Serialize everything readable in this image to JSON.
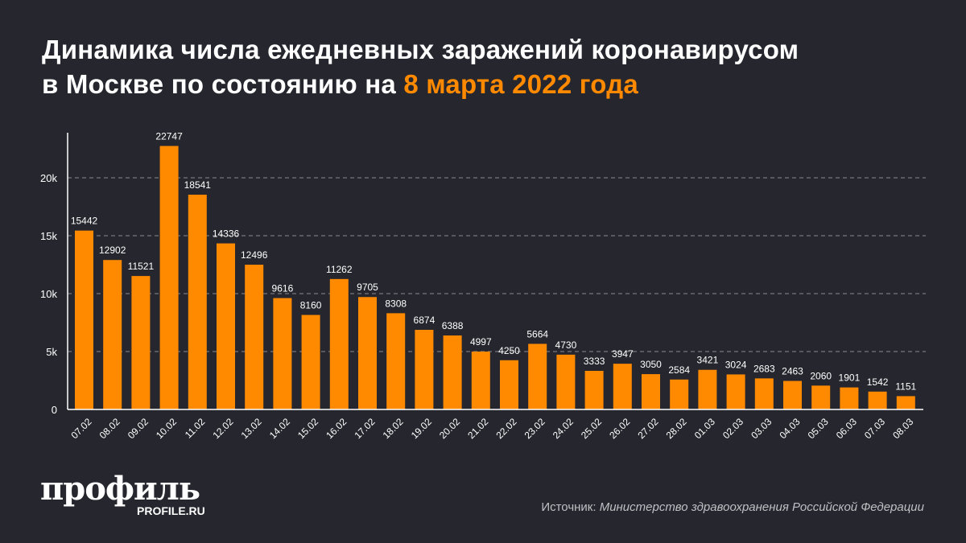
{
  "title": {
    "line1": "Динамика числа ежедневных заражений коронавирусом",
    "line2_prefix": "в Москве по состоянию на ",
    "line2_highlight": "8 марта 2022 года"
  },
  "colors": {
    "bar": "#ff8a00",
    "background": "#26262e",
    "highlight": "#ff8a00"
  },
  "chart_data": {
    "type": "bar",
    "title": "Динамика числа ежедневных заражений коронавирусом в Москве по состоянию на 8 марта 2022 года",
    "categories": [
      "07.02",
      "08.02",
      "09.02",
      "10.02",
      "11.02",
      "12.02",
      "13.02",
      "14.02",
      "15.02",
      "16.02",
      "17.02",
      "18.02",
      "19.02",
      "20.02",
      "21.02",
      "22.02",
      "23.02",
      "24.02",
      "25.02",
      "26.02",
      "27.02",
      "28.02",
      "01.03",
      "02.03",
      "03.03",
      "04.03",
      "05.03",
      "06.03",
      "07.03",
      "08.03"
    ],
    "values": [
      15442,
      12902,
      11521,
      22747,
      18541,
      14336,
      12496,
      9616,
      8160,
      11262,
      9705,
      8308,
      6874,
      6388,
      4997,
      4250,
      5664,
      4730,
      3333,
      3947,
      3050,
      2584,
      3421,
      3024,
      2683,
      2463,
      2060,
      1901,
      1542,
      1151
    ],
    "yticks": [
      0,
      5000,
      10000,
      15000,
      20000
    ],
    "ytick_labels": [
      "0",
      "5k",
      "10k",
      "15k",
      "20k"
    ],
    "ylim": [
      0,
      24000
    ],
    "grid": "horizontal dashed",
    "data_labels": true
  },
  "footer": {
    "logo": "профиль",
    "logo_sub": "PROFILE.RU",
    "source_label": "Источник: ",
    "source_value": "Министерство здравоохранения Российской Федерации"
  }
}
